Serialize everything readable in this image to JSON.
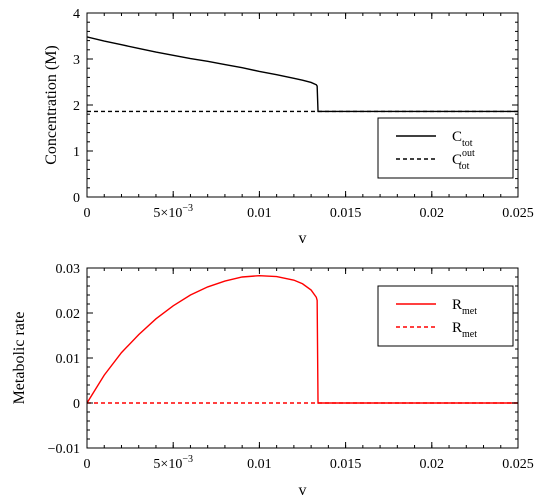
{
  "chart_data": [
    {
      "type": "line",
      "xlabel": "v",
      "ylabel": "Concentration (M)",
      "xlim": [
        0,
        0.025
      ],
      "ylim": [
        0,
        4
      ],
      "x_ticks": [
        {
          "value": 0,
          "label": "0"
        },
        {
          "value": 0.005,
          "label": "5×10",
          "exp": "−3"
        },
        {
          "value": 0.01,
          "label": "0.01"
        },
        {
          "value": 0.015,
          "label": "0.015"
        },
        {
          "value": 0.02,
          "label": "0.02"
        },
        {
          "value": 0.025,
          "label": "0.025"
        }
      ],
      "y_ticks": [
        {
          "value": 0,
          "label": "0"
        },
        {
          "value": 1,
          "label": "1"
        },
        {
          "value": 2,
          "label": "2"
        },
        {
          "value": 3,
          "label": "3"
        },
        {
          "value": 4,
          "label": "4"
        }
      ],
      "legend_position": "middle-right",
      "series": [
        {
          "name": "C_tot",
          "legend_main": "C",
          "legend_sub": "tot",
          "legend_sup": "",
          "color": "#000000",
          "dash": "solid",
          "x": [
            0,
            0.001,
            0.002,
            0.003,
            0.004,
            0.005,
            0.006,
            0.007,
            0.008,
            0.009,
            0.01,
            0.011,
            0.012,
            0.0125,
            0.013,
            0.0133,
            0.01335,
            0.0134,
            0.015,
            0.02,
            0.025
          ],
          "y": [
            3.48,
            3.39,
            3.31,
            3.23,
            3.15,
            3.08,
            3.01,
            2.95,
            2.88,
            2.81,
            2.73,
            2.66,
            2.58,
            2.54,
            2.49,
            2.44,
            2.41,
            1.86,
            1.86,
            1.86,
            1.86
          ]
        },
        {
          "name": "C_tot^out",
          "legend_main": "C",
          "legend_sub": "tot",
          "legend_sup": "out",
          "color": "#000000",
          "dash": "dashed",
          "x": [
            0,
            0.025
          ],
          "y": [
            1.86,
            1.86
          ]
        }
      ]
    },
    {
      "type": "line",
      "xlabel": "v",
      "ylabel": "Metabolic rate",
      "xlim": [
        0,
        0.025
      ],
      "ylim": [
        -0.01,
        0.03
      ],
      "x_ticks": [
        {
          "value": 0,
          "label": "0"
        },
        {
          "value": 0.005,
          "label": "5×10",
          "exp": "−3"
        },
        {
          "value": 0.01,
          "label": "0.01"
        },
        {
          "value": 0.015,
          "label": "0.015"
        },
        {
          "value": 0.02,
          "label": "0.02"
        },
        {
          "value": 0.025,
          "label": "0.025"
        }
      ],
      "y_ticks": [
        {
          "value": -0.01,
          "label": "−0.01"
        },
        {
          "value": 0,
          "label": "0"
        },
        {
          "value": 0.01,
          "label": "0.01"
        },
        {
          "value": 0.02,
          "label": "0.02"
        },
        {
          "value": 0.03,
          "label": "0.03"
        }
      ],
      "legend_position": "top-right",
      "series": [
        {
          "name": "R_met",
          "legend_main": "R",
          "legend_sub": "met",
          "legend_sup": "",
          "color": "#ff0000",
          "dash": "solid",
          "x": [
            0,
            0.001,
            0.002,
            0.003,
            0.004,
            0.005,
            0.006,
            0.007,
            0.008,
            0.009,
            0.01,
            0.011,
            0.012,
            0.0125,
            0.013,
            0.0133,
            0.01335,
            0.0134,
            0.015,
            0.02,
            0.025
          ],
          "y": [
            0,
            0.0062,
            0.0112,
            0.0152,
            0.0187,
            0.0216,
            0.024,
            0.0258,
            0.0271,
            0.028,
            0.0283,
            0.0281,
            0.0273,
            0.0265,
            0.0251,
            0.0235,
            0.0228,
            0,
            0,
            0,
            0
          ]
        },
        {
          "name": "R_met (dashed)",
          "legend_main": "R",
          "legend_sub": "met",
          "legend_sup": "",
          "color": "#ff0000",
          "dash": "dashed",
          "x": [
            0,
            0.025
          ],
          "y": [
            0,
            0
          ]
        }
      ]
    }
  ]
}
